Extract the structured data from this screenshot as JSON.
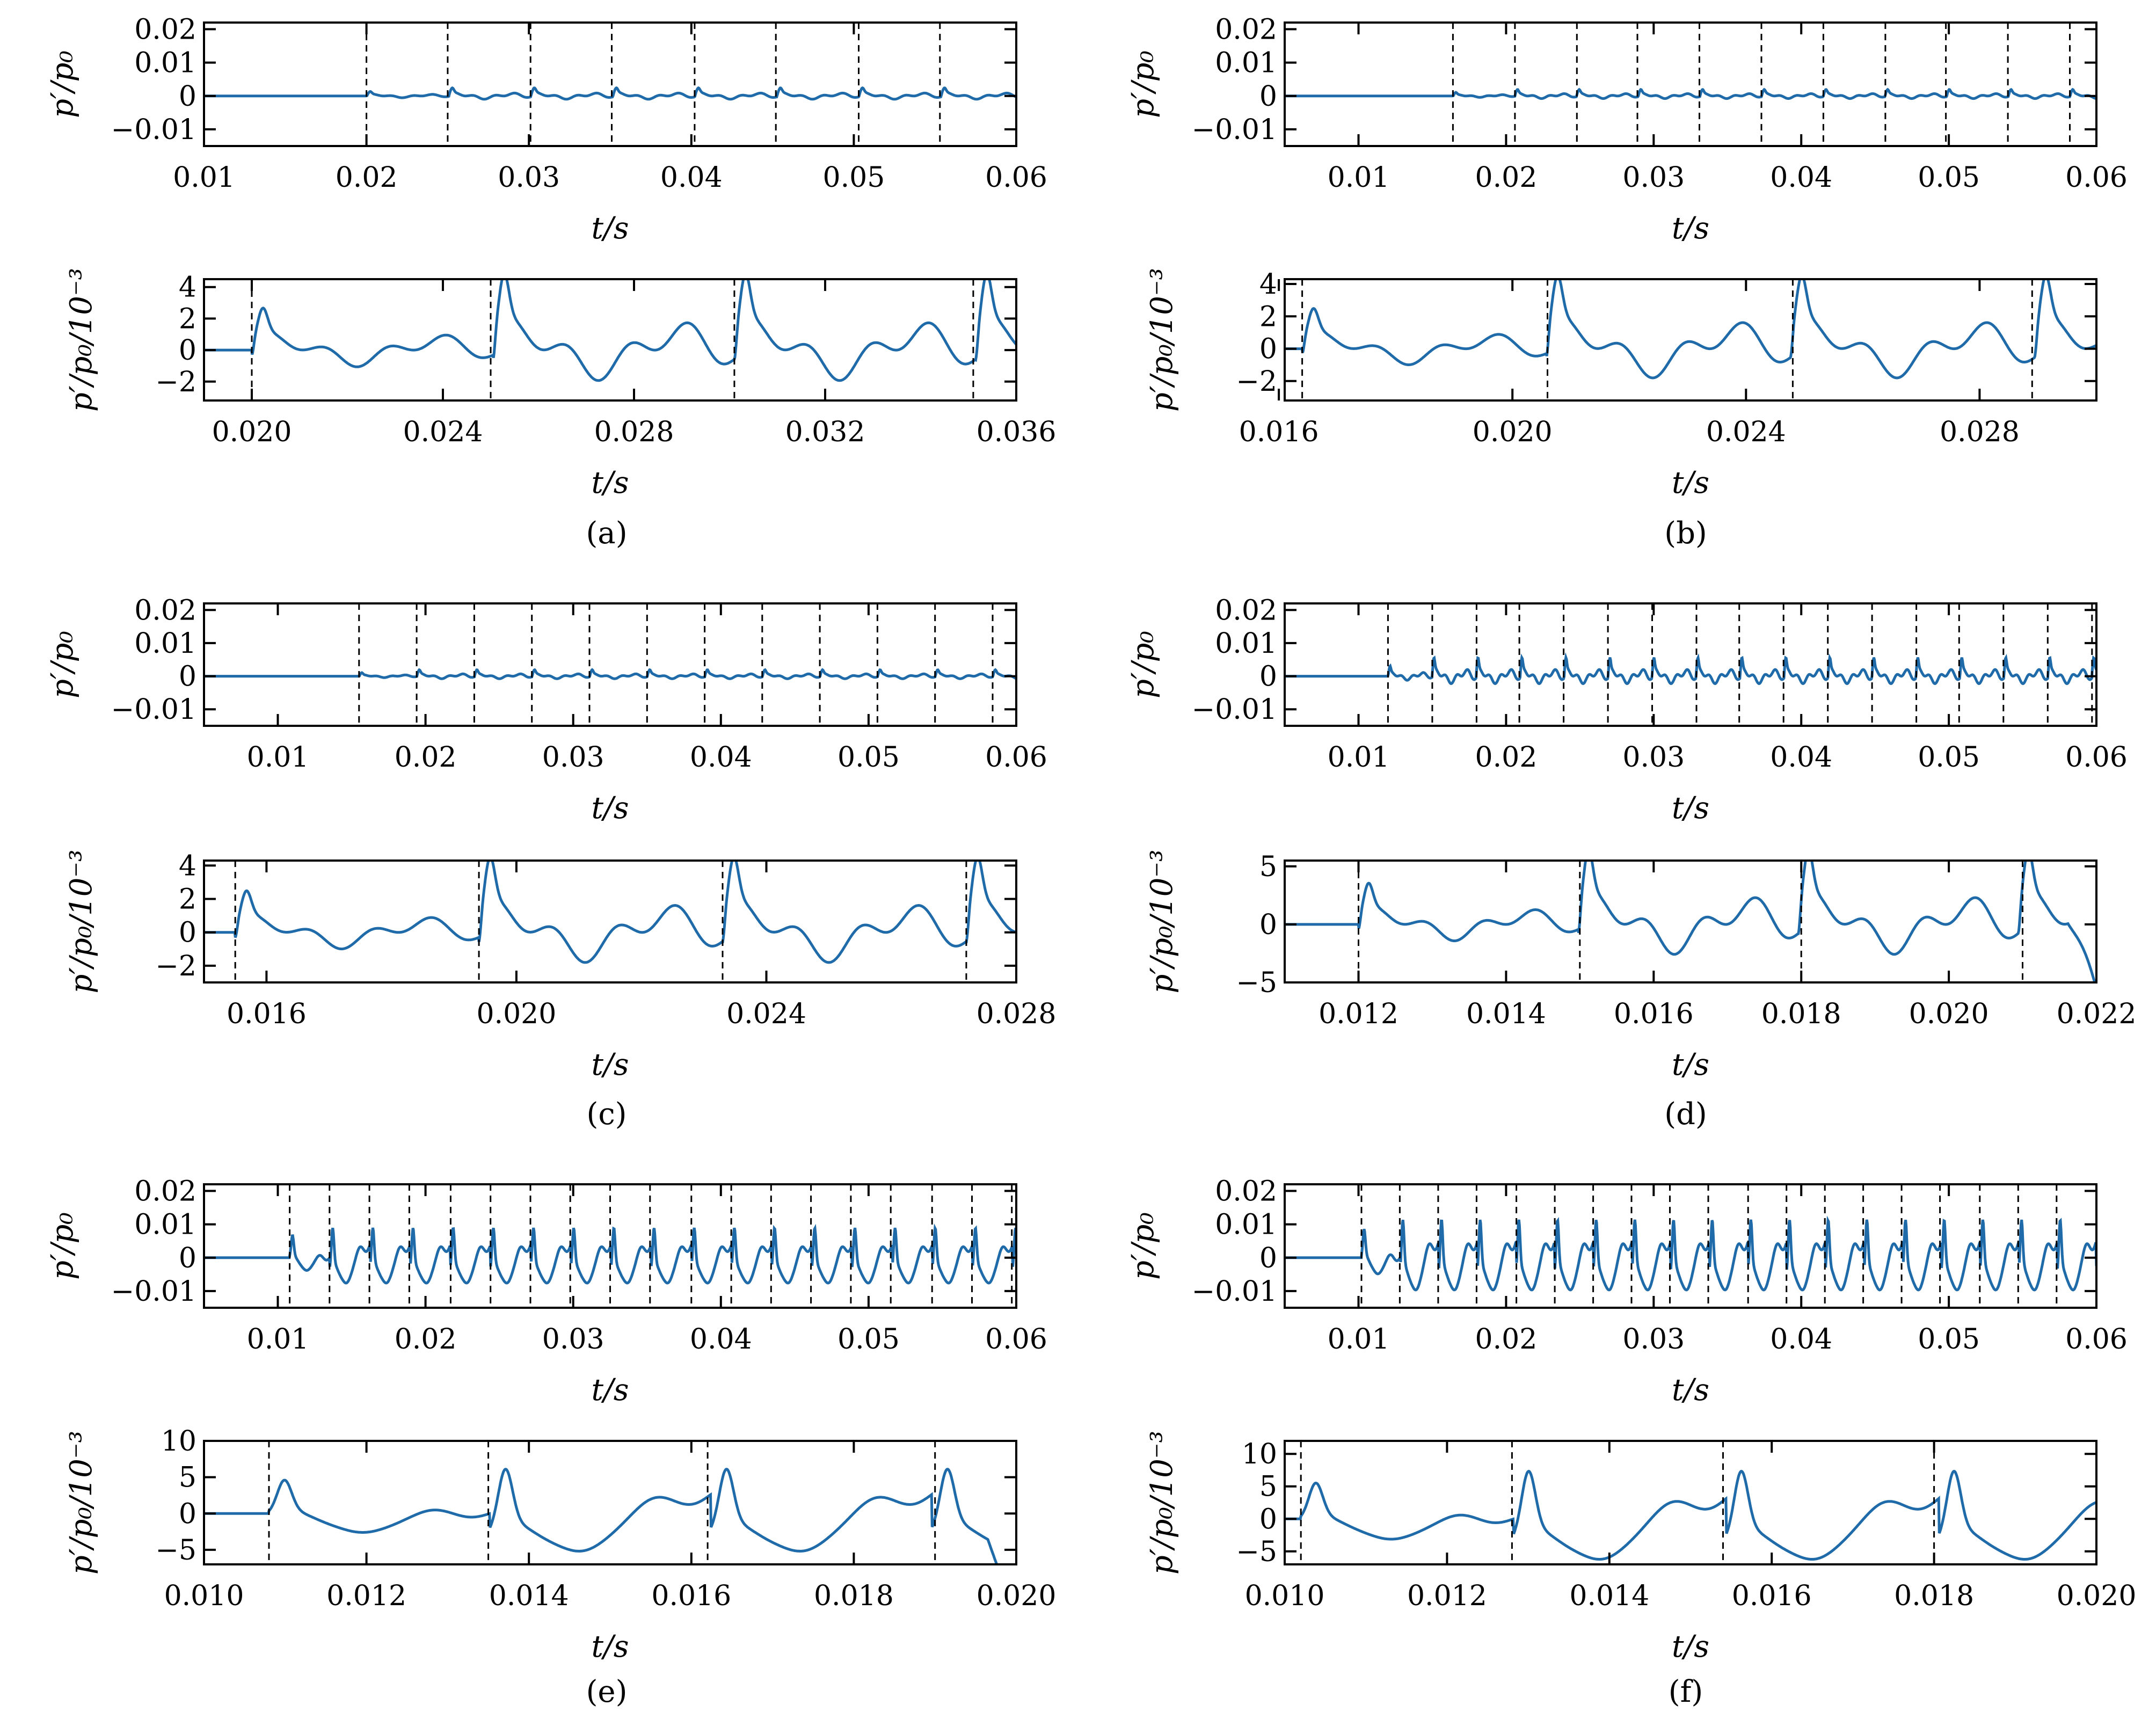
{
  "figure": {
    "panel_labels": [
      "(a)",
      "(b)",
      "(c)",
      "(d)",
      "(e)",
      "(f)"
    ]
  },
  "chart_data": [
    {
      "type": "line",
      "panel": "a",
      "subplot": "top",
      "xlabel": "t/s",
      "ylabel": "p′/p₀",
      "xlim": [
        0.01,
        0.06
      ],
      "ylim": [
        -0.015,
        0.022
      ],
      "xticks": [
        0.01,
        0.02,
        0.03,
        0.04,
        0.05,
        0.06
      ],
      "xtick_labels": [
        "0.01",
        "0.02",
        "0.03",
        "0.04",
        "0.05",
        "0.06"
      ],
      "yticks": [
        -0.01,
        0,
        0.01,
        0.02
      ],
      "ytick_labels": [
        "−0.01",
        "0",
        "0.01",
        "0.02"
      ],
      "onset": 0.02,
      "period": 0.00505,
      "amplitude": 0.0015,
      "shape": "spiky",
      "ending": "flat",
      "markers": [
        0.02,
        0.025,
        0.0301,
        0.0351,
        0.0402,
        0.0452,
        0.0503,
        0.0553
      ]
    },
    {
      "type": "line",
      "panel": "a",
      "subplot": "bottom",
      "xlabel": "t/s",
      "ylabel": "p′/p₀/10⁻³",
      "xlim": [
        0.019,
        0.036
      ],
      "ylim": [
        -3.2,
        4.5
      ],
      "xticks": [
        0.02,
        0.024,
        0.028,
        0.032,
        0.036
      ],
      "xtick_labels": [
        "0.020",
        "0.024",
        "0.028",
        "0.032",
        "0.036"
      ],
      "yticks": [
        -2,
        0,
        2,
        4
      ],
      "ytick_labels": [
        "−2",
        "0",
        "2",
        "4"
      ],
      "onset": 0.02,
      "period": 0.00505,
      "amplitude": 3.0,
      "shape": "spiky",
      "ending": "flat",
      "markers": [
        0.02,
        0.025,
        0.0301,
        0.0351
      ]
    },
    {
      "type": "line",
      "panel": "b",
      "subplot": "top",
      "xlabel": "t/s",
      "ylabel": "p′/p₀",
      "xlim": [
        0.005,
        0.06
      ],
      "ylim": [
        -0.015,
        0.022
      ],
      "xticks": [
        0.01,
        0.02,
        0.03,
        0.04,
        0.05,
        0.06
      ],
      "xtick_labels": [
        "0.01",
        "0.02",
        "0.03",
        "0.04",
        "0.05",
        "0.06"
      ],
      "yticks": [
        -0.01,
        0,
        0.01,
        0.02
      ],
      "ytick_labels": [
        "−0.01",
        "0",
        "0.01",
        "0.02"
      ],
      "onset": 0.0164,
      "period": 0.00418,
      "amplitude": 0.0012,
      "shape": "spiky",
      "ending": "flat",
      "markers": [
        0.0164,
        0.0206,
        0.0248,
        0.0289,
        0.0331,
        0.0373,
        0.0415,
        0.0457,
        0.0498,
        0.054,
        0.0582
      ]
    },
    {
      "type": "line",
      "panel": "b",
      "subplot": "bottom",
      "xlabel": "t/s",
      "ylabel": "p′/p₀/10⁻³",
      "xlim": [
        0.0161,
        0.03
      ],
      "ylim": [
        -3.2,
        4.3
      ],
      "xticks": [
        0.016,
        0.02,
        0.024,
        0.028
      ],
      "xtick_labels": [
        "0.016",
        "0.020",
        "0.024",
        "0.028"
      ],
      "yticks": [
        -2,
        0,
        2,
        4
      ],
      "ytick_labels": [
        "−2",
        "0",
        "2",
        "4"
      ],
      "onset": 0.0164,
      "period": 0.00418,
      "amplitude": 2.8,
      "shape": "spiky",
      "ending": "flat",
      "markers": [
        0.0164,
        0.0206,
        0.0248,
        0.0289
      ]
    },
    {
      "type": "line",
      "panel": "c",
      "subplot": "top",
      "xlabel": "t/s",
      "ylabel": "p′/p₀",
      "xlim": [
        0.005,
        0.06
      ],
      "ylim": [
        -0.015,
        0.022
      ],
      "xticks": [
        0.01,
        0.02,
        0.03,
        0.04,
        0.05,
        0.06
      ],
      "xtick_labels": [
        "0.01",
        "0.02",
        "0.03",
        "0.04",
        "0.05",
        "0.06"
      ],
      "yticks": [
        -0.01,
        0,
        0.01,
        0.02
      ],
      "ytick_labels": [
        "−0.01",
        "0",
        "0.01",
        "0.02"
      ],
      "onset": 0.0155,
      "period": 0.0039,
      "amplitude": 0.0012,
      "shape": "spiky",
      "ending": "flat",
      "markers": [
        0.0155,
        0.0194,
        0.0233,
        0.0272,
        0.0311,
        0.035,
        0.0389,
        0.0428,
        0.0467,
        0.0506,
        0.0545,
        0.0584
      ]
    },
    {
      "type": "line",
      "panel": "c",
      "subplot": "bottom",
      "xlabel": "t/s",
      "ylabel": "p′/p₀/10⁻³",
      "xlim": [
        0.015,
        0.028
      ],
      "ylim": [
        -3.0,
        4.3
      ],
      "xticks": [
        0.016,
        0.02,
        0.024,
        0.028
      ],
      "xtick_labels": [
        "0.016",
        "0.020",
        "0.024",
        "0.028"
      ],
      "yticks": [
        -2,
        0,
        2,
        4
      ],
      "ytick_labels": [
        "−2",
        "0",
        "2",
        "4"
      ],
      "onset": 0.0155,
      "period": 0.0039,
      "amplitude": 2.8,
      "shape": "spiky",
      "ending": "flat",
      "markers": [
        0.0155,
        0.0194,
        0.0233,
        0.0272
      ]
    },
    {
      "type": "line",
      "panel": "d",
      "subplot": "top",
      "xlabel": "t/s",
      "ylabel": "p′/p₀",
      "xlim": [
        0.005,
        0.06
      ],
      "ylim": [
        -0.015,
        0.022
      ],
      "xticks": [
        0.01,
        0.02,
        0.03,
        0.04,
        0.05,
        0.06
      ],
      "xtick_labels": [
        "0.01",
        "0.02",
        "0.03",
        "0.04",
        "0.05",
        "0.06"
      ],
      "yticks": [
        -0.01,
        0,
        0.01,
        0.02
      ],
      "ytick_labels": [
        "−0.01",
        "0",
        "0.01",
        "0.02"
      ],
      "onset": 0.012,
      "period": 0.00298,
      "amplitude": 0.0035,
      "shape": "spiky",
      "ending": "flat",
      "markers": [
        0.012,
        0.015,
        0.018,
        0.0209,
        0.0239,
        0.0269,
        0.0299,
        0.0329,
        0.0358,
        0.0388,
        0.0418,
        0.0448,
        0.0478,
        0.0507,
        0.0537,
        0.0567,
        0.0597
      ]
    },
    {
      "type": "line",
      "panel": "d",
      "subplot": "bottom",
      "xlabel": "t/s",
      "ylabel": "p′/p₀/10⁻³",
      "xlim": [
        0.011,
        0.022
      ],
      "ylim": [
        -5.0,
        5.5
      ],
      "xticks": [
        0.012,
        0.014,
        0.016,
        0.018,
        0.02,
        0.022
      ],
      "xtick_labels": [
        "0.012",
        "0.014",
        "0.016",
        "0.018",
        "0.020",
        "0.022"
      ],
      "yticks": [
        -5,
        0,
        5
      ],
      "ytick_labels": [
        "−5",
        "0",
        "5"
      ],
      "onset": 0.012,
      "period": 0.00298,
      "amplitude": 4.0,
      "shape": "spiky",
      "ending": "drop",
      "markers": [
        0.012,
        0.015,
        0.018,
        0.021
      ]
    },
    {
      "type": "line",
      "panel": "e",
      "subplot": "top",
      "xlabel": "t/s",
      "ylabel": "p′/p₀",
      "xlim": [
        0.005,
        0.06
      ],
      "ylim": [
        -0.015,
        0.022
      ],
      "xticks": [
        0.01,
        0.02,
        0.03,
        0.04,
        0.05,
        0.06
      ],
      "xtick_labels": [
        "0.01",
        "0.02",
        "0.03",
        "0.04",
        "0.05",
        "0.06"
      ],
      "yticks": [
        -0.01,
        0,
        0.01,
        0.02
      ],
      "ytick_labels": [
        "−0.01",
        "0",
        "0.01",
        "0.02"
      ],
      "onset": 0.0108,
      "period": 0.00272,
      "amplitude": 0.011,
      "shape": "sawtooth",
      "ending": "flat",
      "markers": [
        0.0108,
        0.0135,
        0.0162,
        0.0189,
        0.0217,
        0.0244,
        0.0271,
        0.0298,
        0.0325,
        0.0352,
        0.038,
        0.0407,
        0.0434,
        0.0461,
        0.0488,
        0.0515,
        0.0543,
        0.057,
        0.0597
      ]
    },
    {
      "type": "line",
      "panel": "e",
      "subplot": "bottom",
      "xlabel": "t/s",
      "ylabel": "p′/p₀/10⁻³",
      "xlim": [
        0.01,
        0.02
      ],
      "ylim": [
        -7.0,
        10.0
      ],
      "xticks": [
        0.01,
        0.012,
        0.014,
        0.016,
        0.018,
        0.02
      ],
      "xtick_labels": [
        "0.010",
        "0.012",
        "0.014",
        "0.016",
        "0.018",
        "0.020"
      ],
      "yticks": [
        -5,
        0,
        5,
        10
      ],
      "ytick_labels": [
        "−5",
        "0",
        "5",
        "10"
      ],
      "onset": 0.0108,
      "period": 0.00272,
      "amplitude": 7.5,
      "shape": "sawtooth",
      "ending": "drop",
      "markers": [
        0.0108,
        0.0135,
        0.0162,
        0.019
      ]
    },
    {
      "type": "line",
      "panel": "f",
      "subplot": "top",
      "xlabel": "t/s",
      "ylabel": "p′/p₀",
      "xlim": [
        0.005,
        0.06
      ],
      "ylim": [
        -0.015,
        0.022
      ],
      "xticks": [
        0.01,
        0.02,
        0.03,
        0.04,
        0.05,
        0.06
      ],
      "xtick_labels": [
        "0.01",
        "0.02",
        "0.03",
        "0.04",
        "0.05",
        "0.06"
      ],
      "yticks": [
        -0.01,
        0,
        0.01,
        0.02
      ],
      "ytick_labels": [
        "−0.01",
        "0",
        "0.01",
        "0.02"
      ],
      "onset": 0.0102,
      "period": 0.00262,
      "amplitude": 0.014,
      "shape": "sawtooth",
      "ending": "flat",
      "markers": [
        0.0102,
        0.0128,
        0.0154,
        0.018,
        0.0207,
        0.0233,
        0.0259,
        0.0285,
        0.0311,
        0.0337,
        0.0364,
        0.039,
        0.0416,
        0.0442,
        0.0468,
        0.0494,
        0.0521,
        0.0547,
        0.0573
      ]
    },
    {
      "type": "line",
      "panel": "f",
      "subplot": "bottom",
      "xlabel": "t/s",
      "ylabel": "p′/p₀/10⁻³",
      "xlim": [
        0.01,
        0.02
      ],
      "ylim": [
        -7.0,
        12.0
      ],
      "xticks": [
        0.01,
        0.012,
        0.014,
        0.016,
        0.018,
        0.02
      ],
      "xtick_labels": [
        "0.010",
        "0.012",
        "0.014",
        "0.016",
        "0.018",
        "0.020"
      ],
      "yticks": [
        -5,
        0,
        5,
        10
      ],
      "ytick_labels": [
        "−5",
        "0",
        "5",
        "10"
      ],
      "onset": 0.0102,
      "period": 0.00262,
      "amplitude": 9.0,
      "shape": "sawtooth",
      "ending": "flat",
      "markers": [
        0.0102,
        0.0128,
        0.0154,
        0.018
      ]
    }
  ]
}
